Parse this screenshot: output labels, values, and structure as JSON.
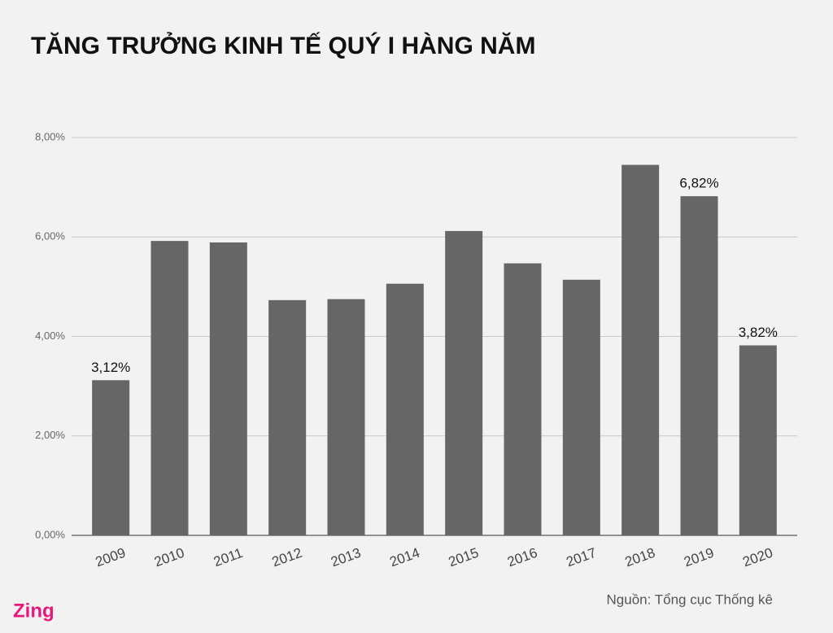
{
  "chart_data": {
    "type": "bar",
    "title": "TĂNG TRƯỞNG KINH TẾ QUÝ I HÀNG NĂM",
    "categories": [
      "2009",
      "2010",
      "2011",
      "2012",
      "2013",
      "2014",
      "2015",
      "2016",
      "2017",
      "2018",
      "2019",
      "2020"
    ],
    "values": [
      3.12,
      5.92,
      5.89,
      4.73,
      4.75,
      5.06,
      6.12,
      5.47,
      5.14,
      7.45,
      6.82,
      3.82
    ],
    "value_labels": [
      "3,12%",
      null,
      null,
      null,
      null,
      null,
      null,
      null,
      null,
      null,
      "6,82%",
      "3,82%"
    ],
    "color": "#666666",
    "ylim": [
      0,
      8
    ],
    "yticks": [
      {
        "value": 0,
        "label": "0,00%"
      },
      {
        "value": 2,
        "label": "2,00%"
      },
      {
        "value": 4,
        "label": "4,00%"
      },
      {
        "value": 6,
        "label": "6,00%"
      },
      {
        "value": 8,
        "label": "8,00%"
      }
    ],
    "grid": true,
    "source": "Nguồn: Tổng cục Thống kê",
    "logo": "Zing"
  }
}
